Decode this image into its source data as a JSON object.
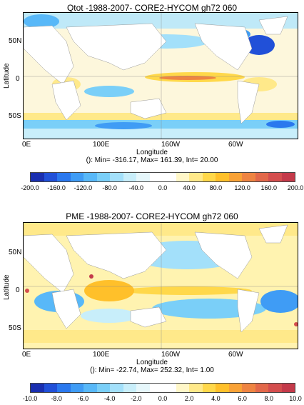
{
  "chart_data": [
    {
      "type": "heatmap",
      "title": "Qtot -1988-2007- CORE2-HYCOM gh72 060",
      "xlabel": "Longitude",
      "ylabel": "Latitude",
      "x_tick_labels": [
        "0E",
        "100E",
        "160W",
        "60W"
      ],
      "y_tick_labels": [
        "50N",
        "0",
        "50S"
      ],
      "stats_text": "(): Min= -316.17, Max= 161.39, Int= 20.00",
      "colorbar": {
        "tick_labels": [
          "-200.0",
          "-160.0",
          "-120.0",
          "-80.0",
          "-40.0",
          "0.0",
          "40.0",
          "80.0",
          "120.0",
          "160.0",
          "200.0"
        ],
        "range": [
          -200,
          200
        ],
        "interval": 20
      }
    },
    {
      "type": "heatmap",
      "title": "PME -1988-2007- CORE2-HYCOM gh72 060",
      "xlabel": "Longitude",
      "ylabel": "Latitude",
      "x_tick_labels": [
        "0E",
        "100E",
        "160W",
        "60W"
      ],
      "y_tick_labels": [
        "50N",
        "0",
        "50S"
      ],
      "stats_text": "(): Min= -22.74, Max= 252.32, Int= 1.00",
      "colorbar": {
        "tick_labels": [
          "-10.0",
          "-8.0",
          "-6.0",
          "-4.0",
          "-2.0",
          "0.0",
          "2.0",
          "4.0",
          "6.0",
          "8.0",
          "10.0"
        ],
        "range": [
          -10,
          10
        ],
        "interval": 1
      }
    }
  ],
  "colors": {
    "palette": [
      "#1a2fb0",
      "#2150d8",
      "#2a78ee",
      "#3f9cf5",
      "#58b8f8",
      "#7acff8",
      "#a3e0fa",
      "#c8eefa",
      "#e6f7fb",
      "#ffffff",
      "#ffffff",
      "#fff7c8",
      "#ffe98a",
      "#ffd84a",
      "#ffc02a",
      "#f9a236",
      "#ee8442",
      "#e2684a",
      "#d44e4e",
      "#c43a4a"
    ],
    "land": "#ffffff",
    "ocean_base": "#fdf6d8"
  }
}
